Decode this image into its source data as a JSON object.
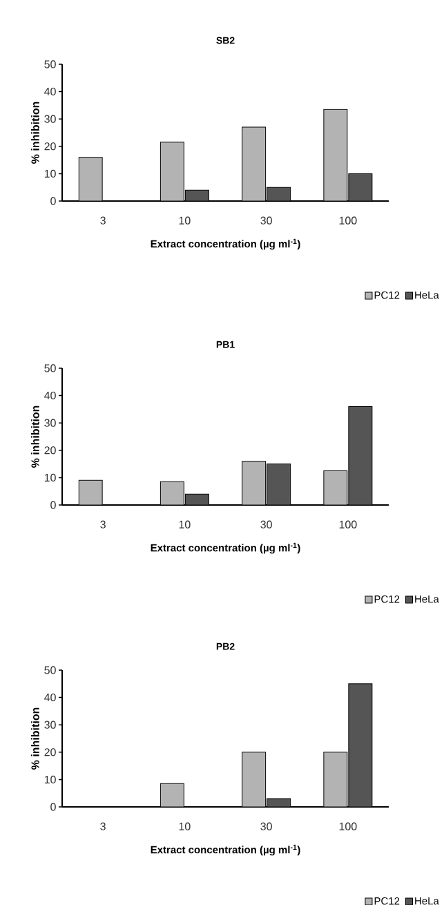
{
  "chart_data": [
    {
      "type": "bar",
      "title": "SB2",
      "xlabel": "Extract concentration (µg ml$^{-1}$)",
      "ylabel": "% inhibition",
      "categories": [
        "3",
        "10",
        "30",
        "100"
      ],
      "ylim": [
        0,
        50
      ],
      "yticks": [
        0,
        10,
        20,
        30,
        40,
        50
      ],
      "legend": "bottom right",
      "series": [
        {
          "name": "PC12",
          "color": "#b3b3b3",
          "values": [
            16,
            21.5,
            27,
            33.5
          ]
        },
        {
          "name": "HeLa",
          "color": "#555555",
          "values": [
            null,
            4,
            5,
            10
          ]
        }
      ]
    },
    {
      "type": "bar",
      "title": "PB1",
      "xlabel": "Extract concentration (µg ml$^{-1}$)",
      "ylabel": "% inhibition",
      "categories": [
        "3",
        "10",
        "30",
        "100"
      ],
      "ylim": [
        0,
        50
      ],
      "yticks": [
        0,
        10,
        20,
        30,
        40,
        50
      ],
      "legend": "bottom right",
      "series": [
        {
          "name": "PC12",
          "color": "#b3b3b3",
          "values": [
            9,
            8.5,
            16,
            12.5
          ]
        },
        {
          "name": "HeLa",
          "color": "#555555",
          "values": [
            null,
            4,
            15,
            36
          ]
        }
      ]
    },
    {
      "type": "bar",
      "title": "PB2",
      "xlabel": "Extract concentration (µg ml$^{-1}$)",
      "ylabel": "% inhibition",
      "categories": [
        "3",
        "10",
        "30",
        "100"
      ],
      "ylim": [
        0,
        50
      ],
      "yticks": [
        0,
        10,
        20,
        30,
        40,
        50
      ],
      "legend": "bottom right",
      "series": [
        {
          "name": "PC12",
          "color": "#b3b3b3",
          "values": [
            null,
            8.5,
            20,
            20
          ]
        },
        {
          "name": "HeLa",
          "color": "#555555",
          "values": [
            null,
            null,
            3,
            45
          ]
        }
      ]
    }
  ]
}
